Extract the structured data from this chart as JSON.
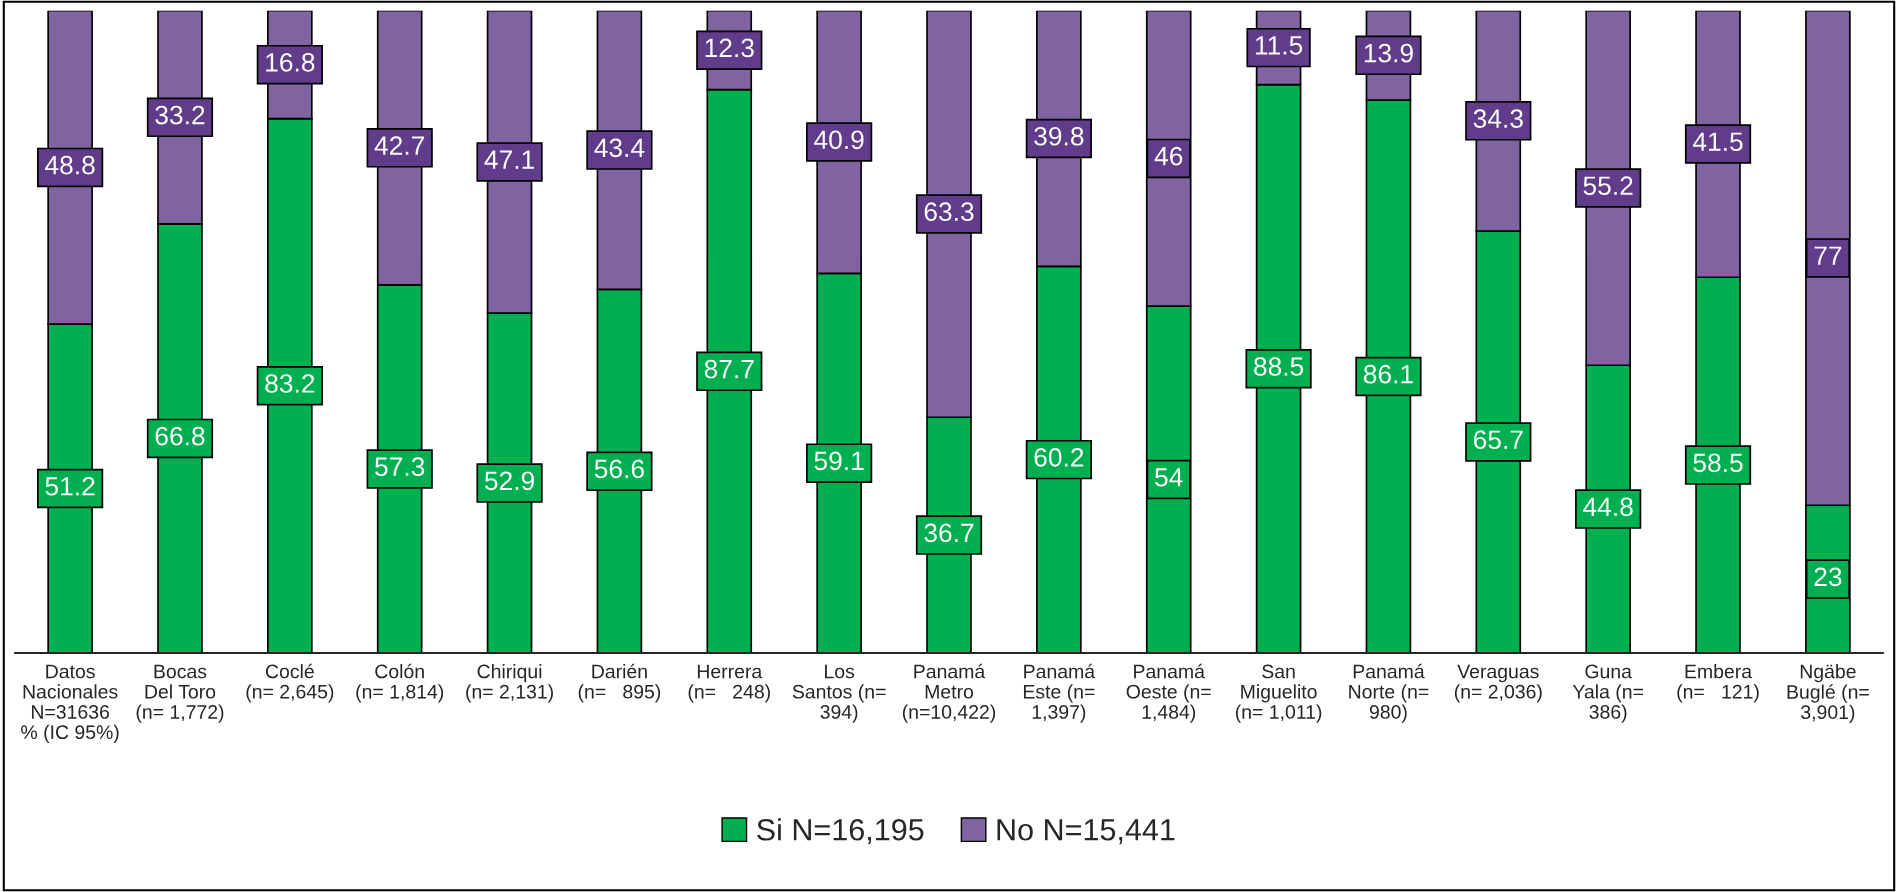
{
  "chart_data": {
    "type": "bar",
    "stacked": true,
    "data_labels": true,
    "legend": "bottom",
    "tick_labels": "x",
    "categories": [
      "Datos\nNacionales\nN=31636\n% (IC 95%)",
      "Bocas\nDel Toro\n(n= 1,772)",
      "Coclé\n(n= 2,645)",
      "Colón\n(n= 1,814)",
      "Chiriqui\n(n= 2,131)",
      "Darién\n(n=   895)",
      "Herrera\n(n=   248)",
      "Los\nSantos (n=\n394)",
      "Panamá\nMetro\n(n=10,422)",
      "Panamá\nEste (n=\n1,397)",
      "Panamá\nOeste (n=\n1,484)",
      "San\nMiguelito\n(n= 1,011)",
      "Panamá\nNorte (n=\n980)",
      "Veraguas\n(n= 2,036)",
      "Guna\nYala (n=\n386)",
      "Embera\n(n=   121)",
      "Ngäbe\nBuglé (n=\n3,901)"
    ],
    "series": [
      {
        "name": "Si N=16,195",
        "color": "#00b050",
        "values": [
          51.2,
          66.8,
          83.2,
          57.3,
          52.9,
          56.6,
          87.7,
          59.1,
          36.7,
          60.2,
          54,
          88.5,
          86.1,
          65.7,
          44.8,
          58.5,
          23
        ]
      },
      {
        "name": "No N=15,441",
        "color": "#8064a2",
        "values": [
          48.8,
          33.2,
          16.8,
          42.7,
          47.1,
          43.4,
          12.3,
          40.9,
          63.3,
          39.8,
          46,
          11.5,
          13.9,
          34.3,
          55.2,
          41.5,
          77
        ]
      }
    ]
  }
}
